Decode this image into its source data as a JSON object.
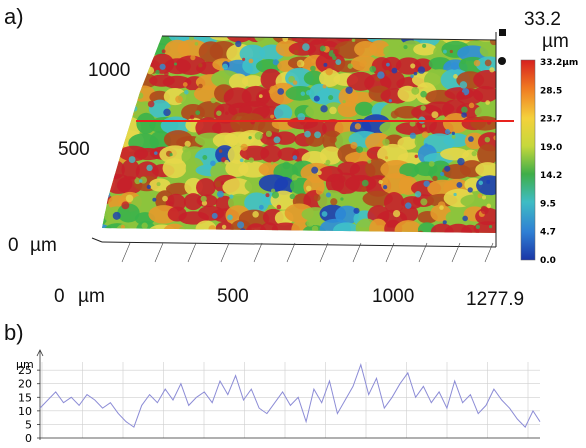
{
  "panel_a": {
    "label": "a)",
    "y_ticks": [
      "0",
      "500",
      "1000"
    ],
    "y_unit": "µm",
    "x_ticks": [
      "0",
      "500",
      "1000",
      "1277.9"
    ],
    "x_unit": "µm",
    "z_max_value": "33.2",
    "z_unit": "µm",
    "colorbar_ticks": [
      "33.2µm",
      "28.5",
      "23.7",
      "19.0",
      "14.2",
      "9.5",
      "4.7",
      "0.0"
    ],
    "colors": {
      "profile_line": "#e8231e"
    }
  },
  "panel_b": {
    "label": "b)",
    "y_unit": "µm",
    "y_ticks": [
      "0",
      "5",
      "10",
      "15",
      "20",
      "25"
    ],
    "colors": {
      "trace": "#8c8cd6",
      "grid": "#cfcfcf"
    }
  },
  "chart_data": [
    {
      "type": "heatmap",
      "description_source": "3D surface topography with height colormap",
      "x_ticks": [
        0,
        500,
        1000,
        1277.9
      ],
      "y_ticks": [
        0,
        500,
        1000
      ],
      "z_range": [
        0.0,
        33.2
      ],
      "colorbar": [
        33.2,
        28.5,
        23.7,
        19.0,
        14.2,
        9.5,
        4.7,
        0.0
      ],
      "colormap": [
        "#1c3fb4",
        "#2f8fd8",
        "#3fc1c9",
        "#3ab24a",
        "#8cc43c",
        "#e6d84a",
        "#e59a2b",
        "#b0481c",
        "#c6202a"
      ]
    },
    {
      "type": "line",
      "ylim": [
        0,
        28
      ],
      "y_ticks": [
        0,
        5,
        10,
        15,
        20,
        25
      ],
      "xlim": [
        0,
        1277.9
      ],
      "x": [
        0,
        20,
        40,
        60,
        80,
        100,
        120,
        140,
        160,
        180,
        200,
        220,
        240,
        260,
        280,
        300,
        320,
        340,
        360,
        380,
        400,
        420,
        440,
        460,
        480,
        500,
        520,
        540,
        560,
        580,
        600,
        620,
        640,
        660,
        680,
        700,
        720,
        740,
        760,
        780,
        800,
        820,
        840,
        860,
        880,
        900,
        920,
        940,
        960,
        980,
        1000,
        1020,
        1040,
        1060,
        1080,
        1100,
        1120,
        1140,
        1160,
        1180,
        1200,
        1220,
        1240,
        1260,
        1277.9
      ],
      "values": [
        11,
        14,
        17,
        13,
        15,
        12,
        16,
        14,
        11,
        13,
        9,
        6,
        4,
        12,
        16,
        13,
        18,
        14,
        20,
        12,
        15,
        17,
        13,
        21,
        16,
        23,
        14,
        18,
        11,
        9,
        13,
        17,
        12,
        15,
        6,
        18,
        13,
        21,
        9,
        14,
        19,
        27,
        16,
        22,
        11,
        15,
        20,
        24,
        15,
        19,
        13,
        17,
        11,
        21,
        13,
        16,
        9,
        12,
        18,
        14,
        11,
        7,
        4,
        10,
        6
      ]
    }
  ]
}
